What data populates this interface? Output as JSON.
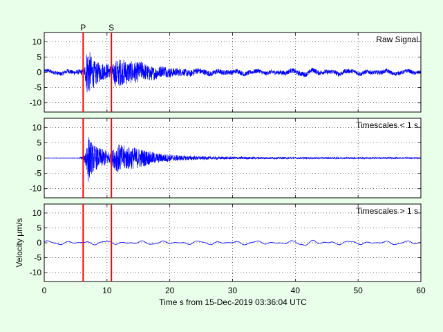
{
  "chart_data": {
    "type": "line",
    "background": "#e9ffe9",
    "trace_color": "#0000ff",
    "pick_color": "#ff0000",
    "grid": "dotted",
    "xlabel": "Time s from 15-Dec-2019 03:36:04 UTC",
    "ylabel": "Velocity μm/s",
    "xlim": [
      0,
      60
    ],
    "x_ticks": [
      0,
      10,
      20,
      30,
      40,
      50,
      60
    ],
    "ylim": [
      -13,
      13
    ],
    "y_ticks": [
      10,
      5,
      0,
      -5,
      -10
    ],
    "phase_picks": [
      {
        "label": "P",
        "time": 6.2
      },
      {
        "label": "S",
        "time": 10.7
      }
    ],
    "panels": [
      {
        "title": "Raw Signal",
        "envelope": [
          [
            0,
            0.6
          ],
          [
            5.5,
            0.8
          ],
          [
            6.4,
            1.2
          ],
          [
            6.9,
            8.5
          ],
          [
            7.6,
            5.0
          ],
          [
            8.5,
            3.5
          ],
          [
            10.0,
            2.5
          ],
          [
            10.7,
            2.0
          ],
          [
            11.5,
            4.8
          ],
          [
            13.0,
            4.0
          ],
          [
            15.0,
            3.3
          ],
          [
            18.0,
            2.0
          ],
          [
            22.0,
            1.2
          ],
          [
            26.0,
            0.9
          ],
          [
            30.0,
            0.8
          ],
          [
            35.0,
            0.7
          ],
          [
            40.0,
            0.8
          ],
          [
            45.0,
            0.8
          ],
          [
            60.0,
            0.6
          ]
        ],
        "long_period_amp": 0.6
      },
      {
        "title": "Timescales < 1 s",
        "envelope": [
          [
            0,
            0.05
          ],
          [
            5.5,
            0.1
          ],
          [
            6.4,
            0.8
          ],
          [
            6.9,
            8.5
          ],
          [
            7.6,
            5.0
          ],
          [
            8.5,
            3.5
          ],
          [
            10.0,
            2.5
          ],
          [
            10.7,
            2.0
          ],
          [
            11.5,
            4.8
          ],
          [
            13.0,
            4.0
          ],
          [
            15.0,
            3.3
          ],
          [
            18.0,
            1.6
          ],
          [
            22.0,
            0.8
          ],
          [
            26.0,
            0.5
          ],
          [
            30.0,
            0.4
          ],
          [
            40.0,
            0.3
          ],
          [
            60.0,
            0.2
          ]
        ],
        "long_period_amp": 0
      },
      {
        "title": "Timescales > 1 s",
        "envelope": [
          [
            0,
            0.05
          ],
          [
            60,
            0.05
          ]
        ],
        "long_period_amp": 0.7
      }
    ]
  }
}
